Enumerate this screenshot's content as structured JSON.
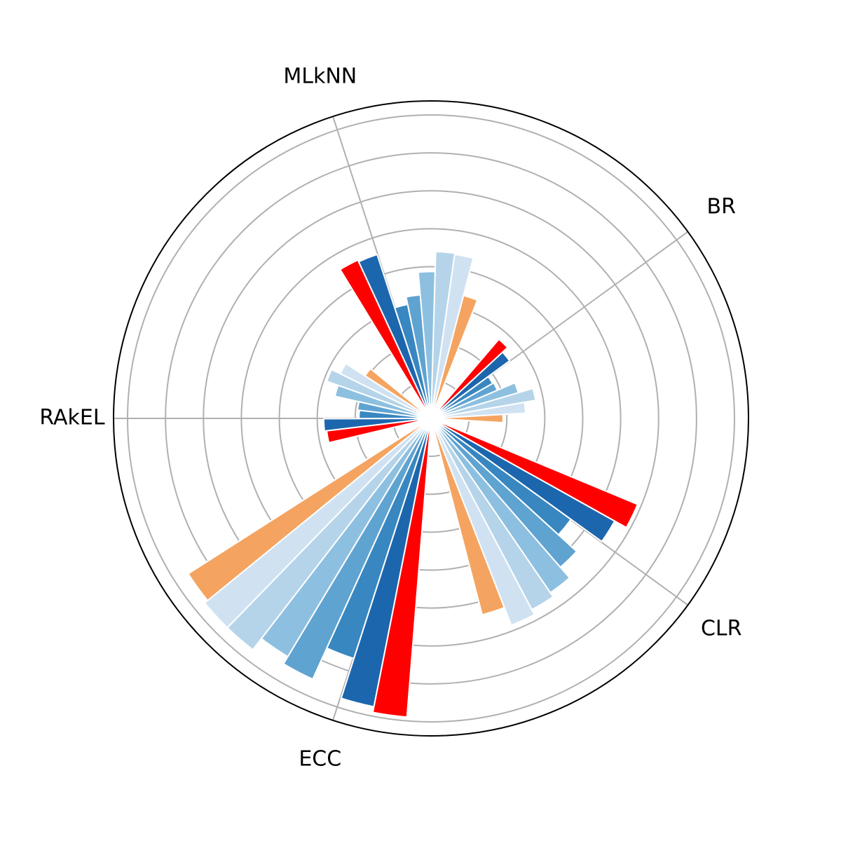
{
  "chart_data": {
    "type": "polar-bar",
    "categories": [
      "BR",
      "MLkNN",
      "RAkEL",
      "ECC",
      "CLR"
    ],
    "series": [
      {
        "color": "#f4a460",
        "values": [
          1.9,
          3.35,
          2.07,
          7.6,
          5.35
        ]
      },
      {
        "color": "#d0e2f2",
        "values": [
          2.5,
          4.37,
          2.67,
          7.7,
          5.85
        ]
      },
      {
        "color": "#b5d4e9",
        "values": [
          2.8,
          4.4,
          2.92,
          7.7,
          5.7
        ]
      },
      {
        "color": "#8dc0e0",
        "values": [
          2.4,
          3.87,
          2.6,
          7.33,
          5.57
        ]
      },
      {
        "color": "#5fa3d1",
        "values": [
          1.9,
          3.27,
          1.95,
          7.55,
          5.2
        ]
      },
      {
        "color": "#3887c0",
        "values": [
          1.87,
          3.07,
          1.9,
          6.65,
          4.55
        ]
      },
      {
        "color": "#1c66ad",
        "values": [
          2.57,
          4.55,
          2.83,
          7.75,
          5.55
        ]
      },
      {
        "color": "#ff0000",
        "values": [
          2.75,
          4.6,
          2.77,
          7.9,
          5.9
        ]
      }
    ],
    "ylim": [
      0,
      8.37
    ],
    "yticks": [
      1,
      2,
      3,
      4,
      5,
      6,
      7,
      8
    ],
    "grid": true
  }
}
